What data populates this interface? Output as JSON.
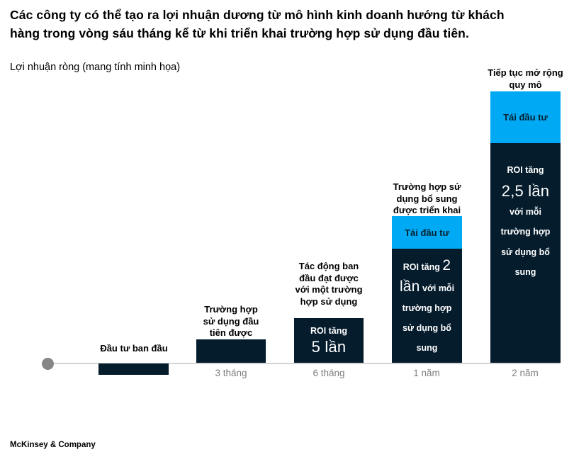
{
  "header": {
    "title": "Các công ty có thể tạo ra lợi nhuận dương từ mô hình kinh doanh hướng từ khách\nhàng trong vòng sáu tháng kể từ khi triển khai trường hợp sử dụng đầu tiên.",
    "subtitle": "Lợi nhuận ròng  (mang tính minh họa)"
  },
  "footer": {
    "brand": "McKinsey & Company"
  },
  "colors": {
    "bar_navy": "#051C2C",
    "reinvest_blue": "#00A9F4",
    "axis_gray": "#D4D4D4",
    "time_label_gray": "#7F7F7F"
  },
  "milestones": [
    {
      "annotation": "Đầu tư ban đầu",
      "time_label": ""
    },
    {
      "annotation": "Trường hợp\nsử dụng đầu\ntiên được",
      "time_label": "3 tháng"
    },
    {
      "annotation": "Tác động ban\nđầu đạt được\nvới một trường\nhợp sử dụng",
      "time_label": "6 tháng",
      "bar_text": {
        "pre": "ROI tăng",
        "big": "5 lần",
        "post": ""
      }
    },
    {
      "annotation": "Trường hợp sử\ndụng bổ sung\nđược triển khai",
      "time_label": "1 năm",
      "reinvest_label": "Tái đầu tư",
      "bar_text": {
        "pre": "ROI tăng ",
        "big": "2 lần",
        "post": " với mỗi trường hợp sử dụng bổ sung"
      }
    },
    {
      "annotation": "Tiếp tục mở rộng\nquy mô",
      "time_label": "2 năm",
      "reinvest_label": "Tái đầu tư",
      "bar_text": {
        "pre": "ROI tăng",
        "big": "2,5 lần",
        "post": "với mỗi\ntrường hợp\nsử dụng bổ\nsung"
      }
    }
  ],
  "chart_data": {
    "type": "bar",
    "title": "Các công ty có thể tạo ra lợi nhuận dương từ mô hình kinh doanh hướng từ khách hàng trong vòng sáu tháng kể từ khi triển khai trường hợp sử dụng đầu tiên.",
    "ylabel": "Lợi nhuận ròng (mang tính minh họa)",
    "xlabel": "",
    "categories": [
      "Đầu tư ban đầu",
      "3 tháng",
      "6 tháng",
      "1 năm",
      "2 năm"
    ],
    "series": [
      {
        "name": "Lợi nhuận ròng",
        "color": "#051C2C",
        "values": [
          -16,
          33,
          63,
          161,
          310
        ]
      },
      {
        "name": "Tái đầu tư",
        "color": "#00A9F4",
        "values": [
          0,
          0,
          0,
          46,
          73
        ]
      }
    ],
    "value_note": "illustrative chart, no numeric axis; values are estimated relative heights",
    "bar_annotations": [
      "Đầu tư ban đầu",
      "Trường hợp sử dụng đầu tiên được",
      "Tác động ban đầu đạt được với một trường hợp sử dụng — ROI tăng 5 lần",
      "Trường hợp sử dụng bổ sung được triển khai — Tái đầu tư; ROI tăng 2 lần với mỗi trường hợp sử dụng bổ sung",
      "Tiếp tục mở rộng quy mô — Tái đầu tư; ROI tăng 2,5 lần với mỗi trường hợp sử dụng bổ sung"
    ],
    "grid": false,
    "legend": "none",
    "baseline": "gray timeline starting at a gray dot"
  }
}
